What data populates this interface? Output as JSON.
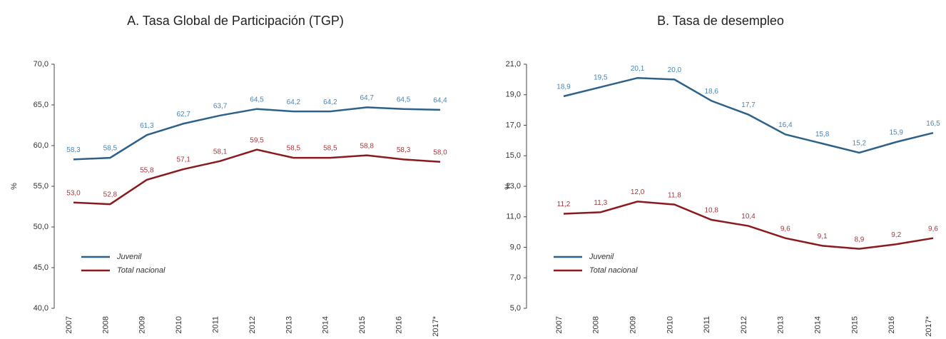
{
  "chart_data": [
    {
      "type": "line",
      "title": "A. Tasa Global de Participación (TGP)",
      "y_label": "%",
      "categories": [
        "2007",
        "2008",
        "2009",
        "2010",
        "2011",
        "2012",
        "2013",
        "2014",
        "2015",
        "2016",
        "2017*"
      ],
      "series": [
        {
          "name": "Juvenil",
          "color": "#2e6188",
          "values": [
            58.3,
            58.5,
            61.3,
            62.7,
            63.7,
            64.5,
            64.2,
            64.2,
            64.7,
            64.5,
            64.4
          ],
          "value_labels": [
            "58,3",
            "58,5",
            "61,3",
            "62,7",
            "63,7",
            "64,5",
            "64,2",
            "64,2",
            "64,7",
            "64,5",
            "64,4"
          ]
        },
        {
          "name": "Total nacional",
          "color": "#8b1a1f",
          "values": [
            53.0,
            52.8,
            55.8,
            57.1,
            58.1,
            59.5,
            58.5,
            58.5,
            58.8,
            58.3,
            58.0
          ],
          "value_labels": [
            "53,0",
            "52,8",
            "55,8",
            "57,1",
            "58,1",
            "59,5",
            "58,5",
            "58,5",
            "58,8",
            "58,3",
            "58,0"
          ]
        }
      ],
      "ylim": [
        40,
        70
      ],
      "yticks": [
        {
          "value": 40,
          "label": "40,0"
        },
        {
          "value": 45,
          "label": "45,0"
        },
        {
          "value": 50,
          "label": "50,0"
        },
        {
          "value": 55,
          "label": "55,0"
        },
        {
          "value": 60,
          "label": "60,0"
        },
        {
          "value": 65,
          "label": "65,0"
        },
        {
          "value": 70,
          "label": "70,0"
        }
      ],
      "legend": "lower left",
      "grid": false
    },
    {
      "type": "line",
      "title": "B. Tasa de desempleo",
      "y_label": "%",
      "categories": [
        "2007",
        "2008",
        "2009",
        "2010",
        "2011",
        "2012",
        "2013",
        "2014",
        "2015",
        "2016",
        "2017*"
      ],
      "series": [
        {
          "name": "Juvenil",
          "color": "#2e6188",
          "values": [
            18.9,
            19.5,
            20.1,
            20.0,
            18.6,
            17.7,
            16.4,
            15.8,
            15.2,
            15.9,
            16.5
          ],
          "value_labels": [
            "18,9",
            "19,5",
            "20,1",
            "20,0",
            "18,6",
            "17,7",
            "16,4",
            "15,8",
            "15,2",
            "15,9",
            "16,5"
          ]
        },
        {
          "name": "Total nacional",
          "color": "#8b1a1f",
          "values": [
            11.2,
            11.3,
            12.0,
            11.8,
            10.8,
            10.4,
            9.6,
            9.1,
            8.9,
            9.2,
            9.6
          ],
          "value_labels": [
            "11,2",
            "11,3",
            "12,0",
            "11,8",
            "10,8",
            "10,4",
            "9,6",
            "9,1",
            "8,9",
            "9,2",
            "9,6"
          ]
        }
      ],
      "ylim": [
        5,
        21
      ],
      "yticks": [
        {
          "value": 5,
          "label": "5,0"
        },
        {
          "value": 7,
          "label": "7,0"
        },
        {
          "value": 9,
          "label": "9,0"
        },
        {
          "value": 11,
          "label": "11,0"
        },
        {
          "value": 13,
          "label": "13,0"
        },
        {
          "value": 15,
          "label": "15,0"
        },
        {
          "value": 17,
          "label": "17,0"
        },
        {
          "value": 19,
          "label": "19,0"
        },
        {
          "value": 21,
          "label": "21,0"
        }
      ],
      "legend": "lower left",
      "grid": false
    }
  ]
}
